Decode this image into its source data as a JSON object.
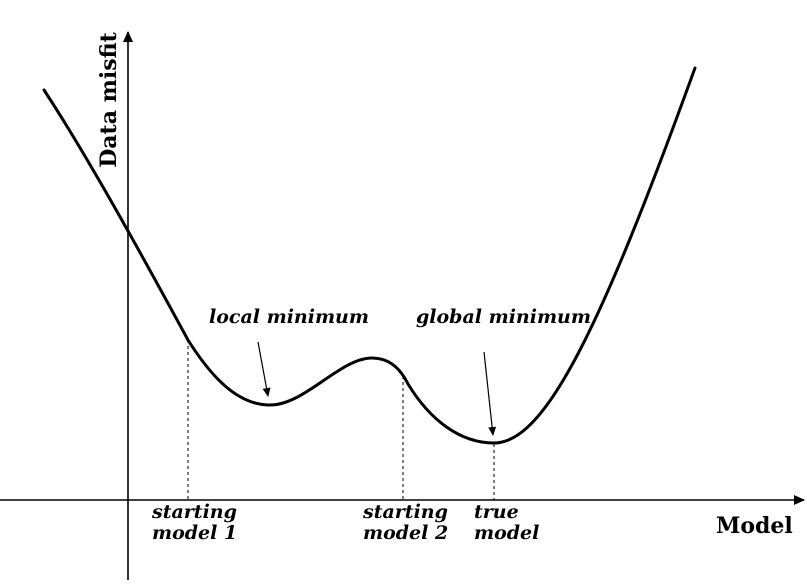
{
  "axes": {
    "y_label": "Data misfit",
    "x_label": "Model"
  },
  "annotations": {
    "local_minimum": "local minimum",
    "global_minimum": "global minimum"
  },
  "markers": {
    "starting_model_1": {
      "line1": "starting",
      "line2": "model 1"
    },
    "starting_model_2": {
      "line1": "starting",
      "line2": "model 2"
    },
    "true_model": {
      "line1": "true",
      "line2": "model"
    }
  },
  "colors": {
    "curve": "#000000",
    "axis": "#000000",
    "guide": "#000000"
  }
}
